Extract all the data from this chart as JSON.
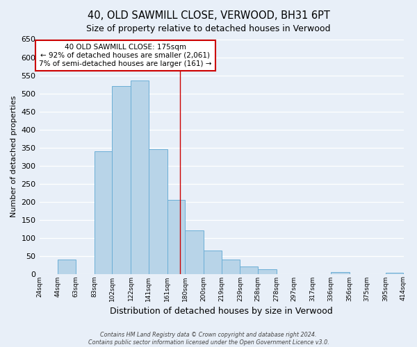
{
  "title": "40, OLD SAWMILL CLOSE, VERWOOD, BH31 6PT",
  "subtitle": "Size of property relative to detached houses in Verwood",
  "xlabel": "Distribution of detached houses by size in Verwood",
  "ylabel": "Number of detached properties",
  "bin_edges": [
    24,
    44,
    63,
    83,
    102,
    122,
    141,
    161,
    180,
    200,
    219,
    239,
    258,
    278,
    297,
    317,
    336,
    356,
    375,
    395,
    414
  ],
  "bar_heights": [
    0,
    40,
    0,
    340,
    520,
    535,
    345,
    205,
    120,
    65,
    40,
    20,
    12,
    0,
    0,
    0,
    5,
    0,
    0,
    3
  ],
  "tick_labels": [
    "24sqm",
    "44sqm",
    "63sqm",
    "83sqm",
    "102sqm",
    "122sqm",
    "141sqm",
    "161sqm",
    "180sqm",
    "200sqm",
    "219sqm",
    "239sqm",
    "258sqm",
    "278sqm",
    "297sqm",
    "317sqm",
    "336sqm",
    "356sqm",
    "375sqm",
    "395sqm",
    "414sqm"
  ],
  "bar_color": "#b8d4e8",
  "bar_edge_color": "#6aaed6",
  "property_line_x": 175,
  "property_line_color": "#cc0000",
  "annotation_line1": "40 OLD SAWMILL CLOSE: 175sqm",
  "annotation_line2": "← 92% of detached houses are smaller (2,061)",
  "annotation_line3": "7% of semi-detached houses are larger (161) →",
  "annotation_box_color": "#ffffff",
  "annotation_box_edge": "#cc0000",
  "ylim": [
    0,
    650
  ],
  "xlim": [
    24,
    414
  ],
  "yticks": [
    0,
    50,
    100,
    150,
    200,
    250,
    300,
    350,
    400,
    450,
    500,
    550,
    600,
    650
  ],
  "footer_line1": "Contains HM Land Registry data © Crown copyright and database right 2024.",
  "footer_line2": "Contains public sector information licensed under the Open Government Licence v3.0.",
  "bg_color": "#e8eff8",
  "plot_bg_color": "#e8eff8",
  "grid_color": "#ffffff",
  "title_fontsize": 10.5,
  "subtitle_fontsize": 9,
  "ylabel_fontsize": 8,
  "xlabel_fontsize": 9
}
